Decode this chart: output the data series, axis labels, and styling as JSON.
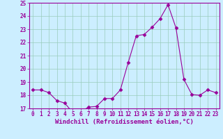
{
  "x": [
    0,
    1,
    2,
    3,
    4,
    5,
    6,
    7,
    8,
    9,
    10,
    11,
    12,
    13,
    14,
    15,
    16,
    17,
    18,
    19,
    20,
    21,
    22,
    23
  ],
  "y": [
    18.4,
    18.4,
    18.2,
    17.6,
    17.4,
    16.7,
    16.75,
    17.1,
    17.15,
    17.75,
    17.75,
    18.4,
    20.5,
    22.5,
    22.6,
    23.15,
    23.8,
    24.85,
    23.1,
    19.2,
    18.05,
    18.0,
    18.4,
    18.2
  ],
  "line_color": "#990099",
  "marker": "D",
  "marker_size": 2.5,
  "bg_color": "#cceeff",
  "grid_color": "#99ccbb",
  "xlabel": "Windchill (Refroidissement éolien,°C)",
  "ylim": [
    17,
    25
  ],
  "xlim": [
    -0.5,
    23.5
  ],
  "yticks": [
    17,
    18,
    19,
    20,
    21,
    22,
    23,
    24,
    25
  ],
  "xticks": [
    0,
    1,
    2,
    3,
    4,
    5,
    6,
    7,
    8,
    9,
    10,
    11,
    12,
    13,
    14,
    15,
    16,
    17,
    18,
    19,
    20,
    21,
    22,
    23
  ],
  "tick_label_size": 5.5,
  "xlabel_size": 6.5
}
